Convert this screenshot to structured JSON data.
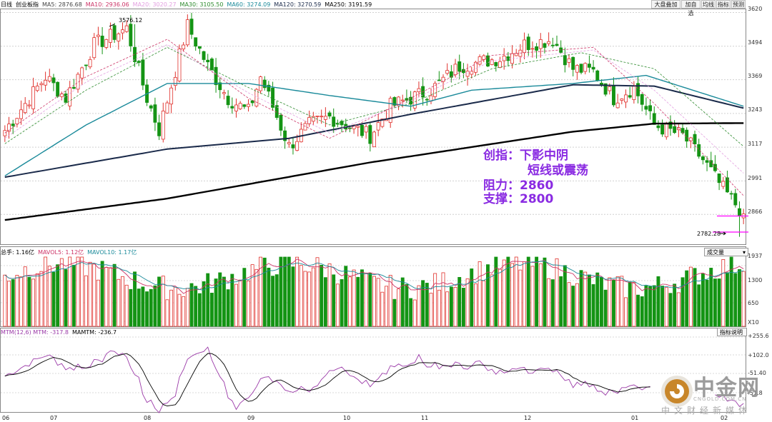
{
  "legend_top": {
    "period": "日线",
    "index": "创业板指",
    "ma": [
      {
        "label": "MA5: 2876.68",
        "color": "#444444"
      },
      {
        "label": "MA10: 2936.06",
        "color": "#cc3366"
      },
      {
        "label": "MA20: 3020.27",
        "color": "#e39fe0"
      },
      {
        "label": "MA30: 3105.50",
        "color": "#2e8b2e"
      },
      {
        "label": "MA60: 3274.09",
        "color": "#1a8a9a"
      },
      {
        "label": "MA120: 3270.59",
        "color": "#1a2a4a"
      },
      {
        "label": "MA250: 3191.59",
        "color": "#000000"
      }
    ]
  },
  "toolbar": [
    "大盘叠加",
    "加自选",
    "均线",
    "指标",
    "预测"
  ],
  "price_axis": [
    "3620",
    "3494",
    "3369",
    "3243",
    "3117",
    "2991",
    "2866"
  ],
  "annotations": {
    "high_label": "3576.12",
    "low_label": "2782.28",
    "line1": "创指：下影中阴",
    "line2": "短线或震荡",
    "line3": "阻力：2860",
    "line4": "支撑：2800"
  },
  "legend_vol": [
    {
      "label": "总手: 1.16亿",
      "color": "#000000"
    },
    {
      "label": "MAVOL5: 1.12亿",
      "color": "#cc3366"
    },
    {
      "label": "MAVOL10: 1.17亿",
      "color": "#1a8a9a"
    }
  ],
  "vol_selector": "成交量",
  "vol_axis": [
    "1937",
    "1300",
    "650",
    "X10"
  ],
  "legend_mtm": [
    {
      "label": "MTM(12,6) MTM: -317.8",
      "color": "#9b3aa8"
    },
    {
      "label": "MAMTM: -236.7",
      "color": "#000000"
    }
  ],
  "mtm_button": "指标说明",
  "mtm_axis": [
    "+255.6",
    "+102.0",
    "-51.40",
    "-51.8"
  ],
  "x_labels": [
    "06",
    "07",
    "08",
    "09",
    "10",
    "11",
    "12",
    "01",
    "02"
  ],
  "watermark": {
    "cn": "中金网",
    "en": "CNGOLD.COM.CN",
    "sub": "中文财经新媒体"
  },
  "colors": {
    "up": "#e0312c",
    "down": "#149414",
    "guide": "#ff00ff"
  },
  "chart_data": {
    "type": "candlestick",
    "title": "创业板指 日线",
    "ylim": [
      2760,
      3640
    ],
    "x_month_labels": [
      "06",
      "07",
      "08",
      "09",
      "10",
      "11",
      "12",
      "01",
      "02"
    ],
    "high": 3576.12,
    "low": 2782.28,
    "key_levels": {
      "resistance": 2860,
      "support": 2800
    },
    "anchors": [
      [
        0,
        3180
      ],
      [
        10,
        3380
      ],
      [
        15,
        3300
      ],
      [
        22,
        3500
      ],
      [
        30,
        3560
      ],
      [
        35,
        3300
      ],
      [
        38,
        3180
      ],
      [
        45,
        3570
      ],
      [
        50,
        3420
      ],
      [
        55,
        3300
      ],
      [
        60,
        3250
      ],
      [
        63,
        3380
      ],
      [
        70,
        3120
      ],
      [
        75,
        3200
      ],
      [
        80,
        3230
      ],
      [
        90,
        3160
      ],
      [
        95,
        3270
      ],
      [
        105,
        3330
      ],
      [
        112,
        3420
      ],
      [
        122,
        3450
      ],
      [
        128,
        3500
      ],
      [
        135,
        3520
      ],
      [
        140,
        3410
      ],
      [
        145,
        3400
      ],
      [
        150,
        3300
      ],
      [
        155,
        3340
      ],
      [
        160,
        3200
      ],
      [
        167,
        3160
      ],
      [
        172,
        3070
      ],
      [
        177,
        2960
      ],
      [
        182,
        2868
      ]
    ],
    "ma_lines": {
      "MA250": [
        [
          0,
          2845
        ],
        [
          40,
          2925
        ],
        [
          90,
          3060
        ],
        [
          140,
          3175
        ],
        [
          160,
          3205
        ],
        [
          182,
          3207
        ]
      ],
      "MA120": [
        [
          0,
          3005
        ],
        [
          40,
          3110
        ],
        [
          70,
          3150
        ],
        [
          100,
          3240
        ],
        [
          140,
          3350
        ],
        [
          160,
          3345
        ],
        [
          182,
          3263
        ]
      ],
      "MA60": [
        [
          0,
          3010
        ],
        [
          20,
          3200
        ],
        [
          40,
          3355
        ],
        [
          60,
          3355
        ],
        [
          80,
          3310
        ],
        [
          100,
          3270
        ],
        [
          115,
          3330
        ],
        [
          140,
          3355
        ],
        [
          158,
          3385
        ],
        [
          182,
          3270
        ]
      ],
      "MA30": [
        [
          0,
          3130
        ],
        [
          20,
          3330
        ],
        [
          40,
          3490
        ],
        [
          60,
          3340
        ],
        [
          80,
          3200
        ],
        [
          100,
          3280
        ],
        [
          120,
          3410
        ],
        [
          142,
          3470
        ],
        [
          160,
          3410
        ],
        [
          182,
          3120
        ]
      ],
      "MA20": [
        [
          0,
          3150
        ],
        [
          20,
          3360
        ],
        [
          40,
          3500
        ],
        [
          60,
          3320
        ],
        [
          80,
          3170
        ],
        [
          100,
          3290
        ],
        [
          120,
          3440
        ],
        [
          145,
          3480
        ],
        [
          160,
          3330
        ],
        [
          182,
          3020
        ]
      ],
      "MA10": [
        [
          0,
          3170
        ],
        [
          20,
          3380
        ],
        [
          40,
          3520
        ],
        [
          60,
          3300
        ],
        [
          80,
          3150
        ],
        [
          100,
          3300
        ],
        [
          120,
          3460
        ],
        [
          145,
          3490
        ],
        [
          160,
          3280
        ],
        [
          182,
          2936
        ]
      ]
    },
    "volume_axis": [
      "1937",
      "1300",
      "650"
    ],
    "mtm_axis": [
      "+255.6",
      "+102.0",
      "-51.40",
      "-51.8"
    ]
  }
}
